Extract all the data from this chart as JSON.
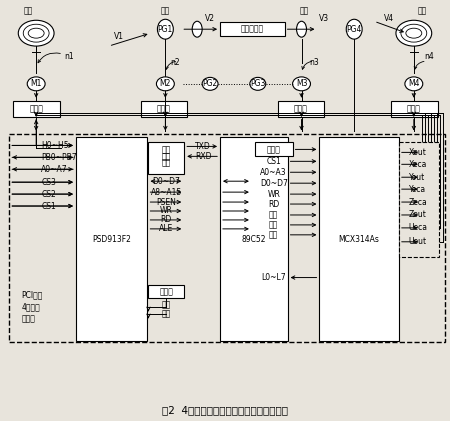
{
  "title": "图2  4轴运动控制卡及其带料加工生产过程",
  "bg_color": "#e8e4dc",
  "fig_bg": "#e8e4dc",
  "fangliao": "放料",
  "jinggei": "进给",
  "qianchu": "牵出",
  "shouliao": "收料",
  "V1": "V1",
  "V2": "V2",
  "V3": "V3",
  "V4": "V4",
  "PG1": "PG1",
  "PG4": "PG4",
  "PG2": "PG2",
  "PG3": "PG3",
  "n1": "n1",
  "n2": "n2",
  "n3": "n3",
  "n4": "n4",
  "M1": "M1",
  "M2": "M2",
  "M3": "M3",
  "M4": "M4",
  "jiagong": "各加工单元",
  "diasuqi": "调速器",
  "pci_bus": "PCI总线",
  "axis4": "4轴运动",
  "ctrl": "控制卡",
  "left_pins": [
    "H0~H5",
    "PB0~PB7",
    "A0~A7",
    "CS3",
    "CS2",
    "CS1"
  ],
  "psd_label": "PSD913F2",
  "serial_label1": "串口",
  "serial_label2": "通信",
  "serial_label3": "电路",
  "txd": "TXD",
  "rxd": "RXD",
  "mid_pins": [
    "D0~D7",
    "A8~A15",
    "PSEN",
    "WR",
    "RD",
    "ALE"
  ],
  "pulse_box": "脉冲源",
  "zhongduan": "中断",
  "fuwei": "复位",
  "cpu_label": "89C52",
  "mcx_label": "MCX314As",
  "mcx_left_pins": [
    "脉冲源",
    "CS1",
    "A0~A3",
    "D0~D7",
    "WR",
    "RD",
    "复位",
    "中断",
    "急停",
    "L0~L7"
  ],
  "mcx_right_pins": [
    "Xout",
    "Xeca",
    "Yout",
    "Yeca",
    "Zeca",
    "Zout",
    "Ueca",
    "Uout"
  ],
  "fs": 5.5,
  "fm": 6.0,
  "ft": 7.5
}
